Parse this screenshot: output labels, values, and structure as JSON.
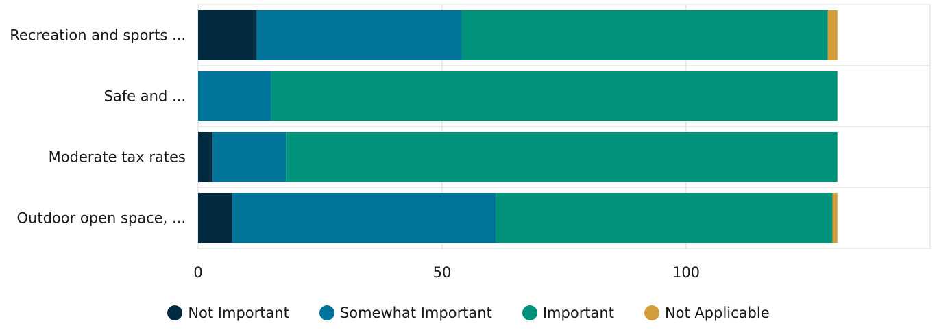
{
  "chart_data": {
    "type": "bar",
    "orientation": "horizontal",
    "stacked": true,
    "categories": [
      "Recreation and sports ...",
      "Safe and ...",
      "Moderate tax rates",
      "Outdoor open space, ..."
    ],
    "series": [
      {
        "name": "Not Important",
        "color": "#022b42",
        "values": [
          12,
          0,
          3,
          7
        ]
      },
      {
        "name": "Somewhat Important",
        "color": "#00749a",
        "values": [
          42,
          15,
          15,
          54
        ]
      },
      {
        "name": "Important",
        "color": "#00927a",
        "values": [
          75,
          116,
          113,
          69
        ]
      },
      {
        "name": "Not Applicable",
        "color": "#d39d3b",
        "values": [
          2,
          0,
          0,
          1
        ]
      }
    ],
    "xticks": [
      0,
      50,
      100
    ],
    "xlim": [
      0,
      150
    ],
    "grid": true,
    "legend_position": "bottom"
  }
}
